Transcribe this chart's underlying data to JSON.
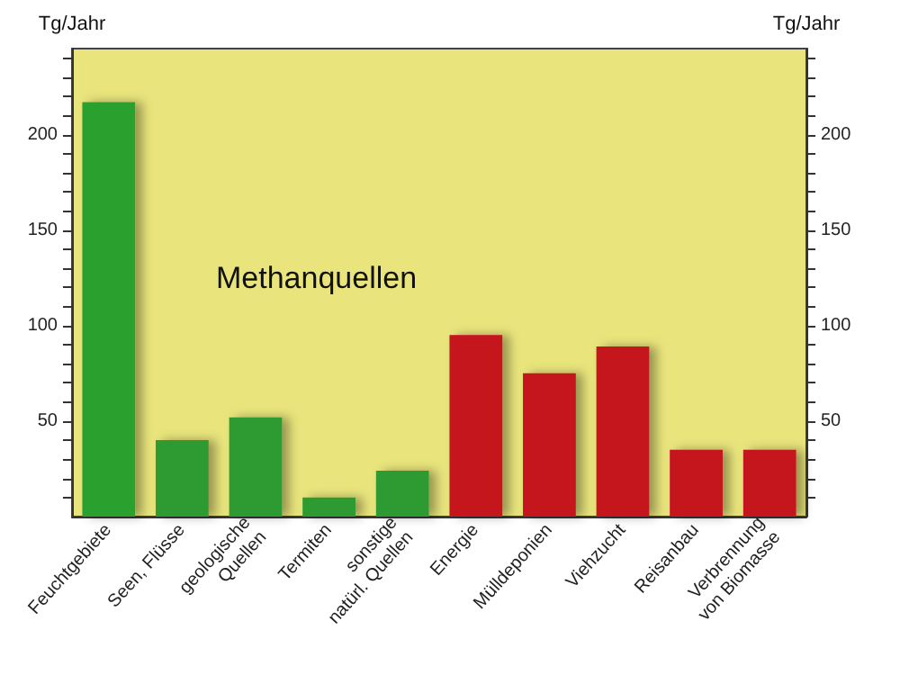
{
  "chart_data": {
    "type": "bar",
    "title": "Methanquellen",
    "ylabel": "Tg/Jahr",
    "y2label": "Tg/Jahr",
    "categories": [
      "Feuchtgebiete",
      "Seen, Flüsse",
      "geologische\nQuellen",
      "Termiten",
      "sonstige\nnatürl. Quellen",
      "Energie",
      "Mülldeponien",
      "Viehzucht",
      "Reisanbau",
      "Verbrennung\nvon Biomasse"
    ],
    "values": [
      217,
      40,
      52,
      10,
      24,
      95,
      75,
      89,
      35,
      35
    ],
    "colors": [
      "#2aa12f",
      "#2e9a33",
      "#2e9a33",
      "#2e9a33",
      "#2e9a33",
      "#c4141f",
      "#c4141f",
      "#c4141f",
      "#c4141f",
      "#c4141f"
    ],
    "ylim": [
      0,
      245
    ],
    "yticks": [
      {
        "value": 10,
        "label": null
      },
      {
        "value": 20,
        "label": null
      },
      {
        "value": 30,
        "label": null
      },
      {
        "value": 40,
        "label": null
      },
      50,
      {
        "value": 60,
        "label": null
      },
      {
        "value": 70,
        "label": null
      },
      {
        "value": 80,
        "label": null
      },
      {
        "value": 90,
        "label": null
      },
      100,
      {
        "value": 110,
        "label": null
      },
      {
        "value": 120,
        "label": null
      },
      {
        "value": 130,
        "label": null
      },
      {
        "value": 140,
        "label": null
      },
      150,
      {
        "value": 160,
        "label": null
      },
      {
        "value": 170,
        "label": null
      },
      {
        "value": 180,
        "label": null
      },
      {
        "value": 190,
        "label": null
      },
      200,
      {
        "value": 210,
        "label": null
      },
      {
        "value": 220,
        "label": null
      },
      {
        "value": 230,
        "label": null
      },
      {
        "value": 240,
        "label": null
      }
    ],
    "y2lim": [
      0,
      245
    ],
    "y2ticks": [
      {
        "value": 10,
        "label": null
      },
      {
        "value": 20,
        "label": null
      },
      {
        "value": 30,
        "label": null
      },
      {
        "value": 40,
        "label": null
      },
      50,
      {
        "value": 60,
        "label": null
      },
      {
        "value": 70,
        "label": null
      },
      {
        "value": 80,
        "label": null
      },
      {
        "value": 90,
        "label": null
      },
      100,
      {
        "value": 110,
        "label": null
      },
      {
        "value": 120,
        "label": null
      },
      {
        "value": 130,
        "label": null
      },
      {
        "value": 140,
        "label": null
      },
      150,
      {
        "value": 160,
        "label": null
      },
      {
        "value": 170,
        "label": null
      },
      {
        "value": 180,
        "label": null
      },
      {
        "value": 190,
        "label": null
      },
      200,
      {
        "value": 210,
        "label": null
      },
      {
        "value": 220,
        "label": null
      },
      {
        "value": 230,
        "label": null
      },
      {
        "value": 240,
        "label": null
      }
    ],
    "grid": false
  }
}
